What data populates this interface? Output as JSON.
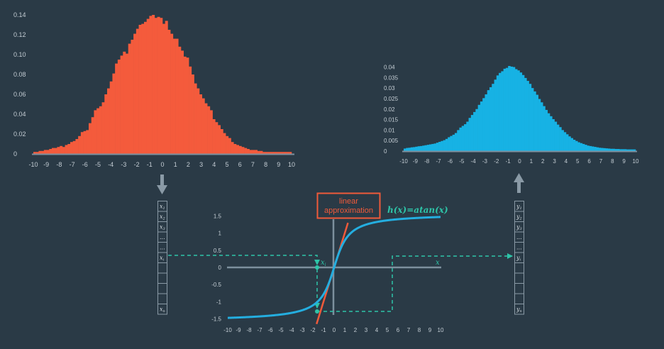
{
  "colors": {
    "background": "#2a3a46",
    "input_hist": "#f45b3c",
    "output_hist": "#17b2e4",
    "curve": "#24aee0",
    "tangent": "#f05a3a",
    "dashed": "#2ec4a8",
    "axis": "#7d909e",
    "text": "#c3ccd3",
    "label_box_border": "#f05a3a",
    "label_text": "#f05a3a",
    "func_text": "#2ec4a8"
  },
  "diagram": {
    "tangent_label_line1": "linear",
    "tangent_label_line2": "approximation",
    "function_label": "h(x)=atan(x)",
    "x_axis_label": "x",
    "point_label": "x",
    "point_label_sub": "i",
    "arrow_down_icon": "arrow-down-icon",
    "arrow_up_icon": "arrow-up-icon"
  },
  "input_vector": {
    "cells": [
      {
        "main": "x",
        "sub": "1"
      },
      {
        "main": "x",
        "sub": "2"
      },
      {
        "main": "x",
        "sub": "3"
      },
      {
        "main": "...",
        "sub": ""
      },
      {
        "main": "...",
        "sub": ""
      },
      {
        "main": "x",
        "sub": "i"
      },
      {
        "main": "",
        "sub": ""
      },
      {
        "main": "",
        "sub": ""
      },
      {
        "main": "",
        "sub": ""
      },
      {
        "main": "",
        "sub": ""
      },
      {
        "main": "x",
        "sub": "n"
      }
    ]
  },
  "output_vector": {
    "cells": [
      {
        "main": "y",
        "sub": "1"
      },
      {
        "main": "y",
        "sub": "2"
      },
      {
        "main": "y",
        "sub": "3"
      },
      {
        "main": "...",
        "sub": ""
      },
      {
        "main": "...",
        "sub": ""
      },
      {
        "main": "y",
        "sub": "i"
      },
      {
        "main": "",
        "sub": ""
      },
      {
        "main": "",
        "sub": ""
      },
      {
        "main": "",
        "sub": ""
      },
      {
        "main": "",
        "sub": ""
      },
      {
        "main": "y",
        "sub": "n"
      }
    ]
  },
  "chart_data": [
    {
      "type": "bar",
      "x_ticks": [
        "-10",
        "-9",
        "-8",
        "-7",
        "-6",
        "-5",
        "-4",
        "-3",
        "-2",
        "-1",
        "0",
        "1",
        "2",
        "3",
        "4",
        "5",
        "6",
        "7",
        "8",
        "9",
        "10"
      ],
      "y_ticks": [
        "0",
        "0.02",
        "0.04",
        "0.06",
        "0.08",
        "0.10",
        "0.12",
        "0.14"
      ],
      "xlim": [
        -10,
        10
      ],
      "ylim": [
        0,
        0.14
      ],
      "bin_width": 0.25,
      "values": [
        0.002,
        0.002,
        0.003,
        0.003,
        0.004,
        0.004,
        0.005,
        0.006,
        0.006,
        0.007,
        0.008,
        0.007,
        0.009,
        0.01,
        0.012,
        0.013,
        0.015,
        0.018,
        0.022,
        0.023,
        0.024,
        0.031,
        0.037,
        0.044,
        0.046,
        0.048,
        0.052,
        0.06,
        0.066,
        0.073,
        0.081,
        0.091,
        0.095,
        0.099,
        0.103,
        0.101,
        0.111,
        0.115,
        0.121,
        0.126,
        0.13,
        0.131,
        0.133,
        0.136,
        0.139,
        0.14,
        0.137,
        0.138,
        0.137,
        0.131,
        0.134,
        0.125,
        0.121,
        0.116,
        0.116,
        0.108,
        0.104,
        0.098,
        0.097,
        0.088,
        0.08,
        0.071,
        0.066,
        0.06,
        0.056,
        0.051,
        0.048,
        0.044,
        0.035,
        0.032,
        0.029,
        0.025,
        0.021,
        0.018,
        0.016,
        0.012,
        0.01,
        0.009,
        0.008,
        0.007,
        0.006,
        0.005,
        0.004,
        0.004,
        0.004,
        0.003,
        0.003,
        0.002,
        0.002,
        0.002,
        0.002,
        0.002,
        0.002,
        0.002,
        0.002,
        0.002,
        0.002,
        0.002
      ]
    },
    {
      "type": "bar",
      "x_ticks": [
        "-10",
        "-9",
        "-8",
        "-7",
        "-6",
        "-5",
        "-4",
        "-3",
        "-2",
        "-1",
        "0",
        "1",
        "2",
        "3",
        "4",
        "5",
        "6",
        "7",
        "8",
        "9",
        "10"
      ],
      "y_ticks": [
        "0",
        "0.005",
        "0.01",
        "0.015",
        "0.02",
        "0.025",
        "0.03",
        "0.035",
        "0.04"
      ],
      "xlim": [
        -10,
        10
      ],
      "ylim": [
        0,
        0.04
      ],
      "bin_width": 0.25,
      "values": [
        0.0012,
        0.0015,
        0.0016,
        0.0018,
        0.0019,
        0.0021,
        0.0023,
        0.0024,
        0.0026,
        0.0028,
        0.003,
        0.0032,
        0.0034,
        0.0036,
        0.004,
        0.0044,
        0.0048,
        0.0052,
        0.0058,
        0.0066,
        0.0072,
        0.0078,
        0.0086,
        0.01,
        0.0112,
        0.012,
        0.0128,
        0.014,
        0.0158,
        0.0172,
        0.0186,
        0.02,
        0.022,
        0.0236,
        0.0252,
        0.027,
        0.029,
        0.0304,
        0.032,
        0.034,
        0.036,
        0.0372,
        0.038,
        0.0392,
        0.0396,
        0.0405,
        0.0402,
        0.04,
        0.039,
        0.0384,
        0.0374,
        0.0362,
        0.0348,
        0.0334,
        0.032,
        0.03,
        0.0284,
        0.0268,
        0.0248,
        0.0232,
        0.0214,
        0.0196,
        0.018,
        0.0166,
        0.0152,
        0.014,
        0.0126,
        0.0114,
        0.01,
        0.009,
        0.008,
        0.007,
        0.0062,
        0.0054,
        0.0048,
        0.0042,
        0.0038,
        0.0034,
        0.003,
        0.0026,
        0.0024,
        0.0022,
        0.002,
        0.0018,
        0.0016,
        0.0015,
        0.0014,
        0.0013,
        0.0012,
        0.0011,
        0.0011,
        0.001,
        0.001,
        0.0009,
        0.0009,
        0.0009,
        0.0008,
        0.0008,
        0.0008,
        0.0008
      ]
    },
    {
      "type": "line",
      "x_ticks": [
        "-10",
        "-9",
        "-8",
        "-7",
        "-6",
        "-5",
        "-4",
        "-3",
        "-2",
        "-1",
        "0",
        "1",
        "2",
        "3",
        "4",
        "5",
        "6",
        "7",
        "8",
        "9",
        "10"
      ],
      "y_ticks": [
        "1.5",
        "1",
        "0.5",
        "0",
        "-0.5",
        "-1",
        "-1.5"
      ],
      "xlim": [
        -10,
        10
      ],
      "ylim": [
        -1.5,
        1.5
      ],
      "series": [
        {
          "name": "h(x)=atan(x)",
          "function": "atan",
          "x_range": [
            -10,
            10
          ]
        }
      ],
      "tangent_at_x": 0,
      "tangent_slope": 1,
      "point_x": -1.5
    }
  ]
}
